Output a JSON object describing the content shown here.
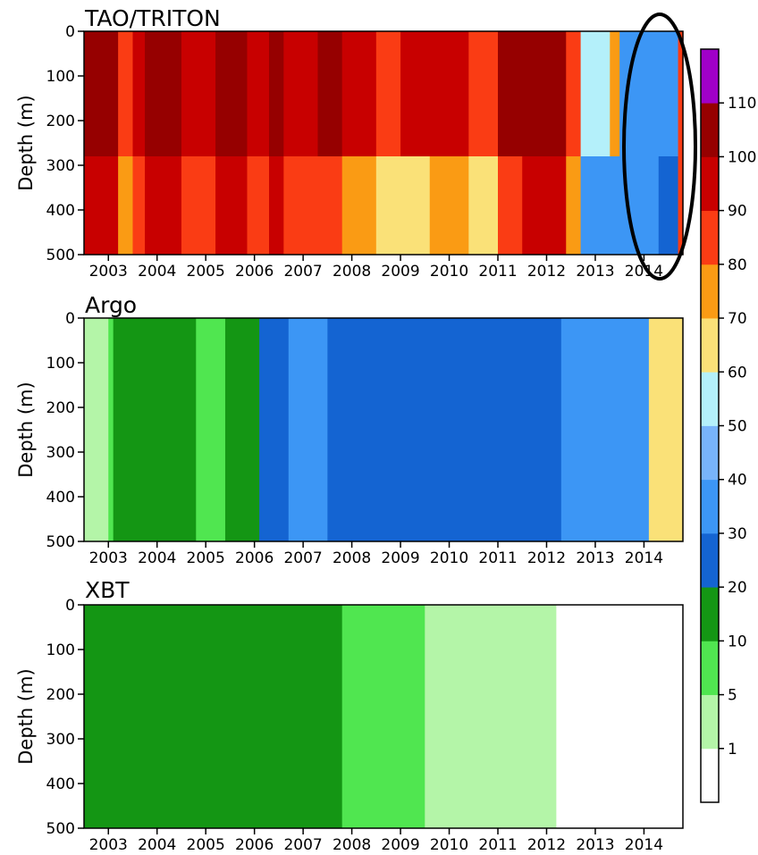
{
  "chart_data": {
    "type": "heatmap",
    "colorbar": {
      "levels": [
        0,
        1,
        5,
        10,
        20,
        30,
        40,
        50,
        60,
        70,
        80,
        90,
        100,
        110,
        120
      ],
      "tick_labels": [
        "1",
        "5",
        "10",
        "20",
        "30",
        "40",
        "50",
        "60",
        "70",
        "80",
        "90",
        "100",
        "110"
      ],
      "colors": [
        "#ffffff",
        "#b4f5a8",
        "#50e650",
        "#149614",
        "#1464d2",
        "#3c96f5",
        "#78b4fa",
        "#b4f0fa",
        "#fae178",
        "#fa9b14",
        "#fa3c14",
        "#c80000",
        "#960000",
        "#a000c8"
      ]
    },
    "xtick_labels": [
      "2003",
      "2004",
      "2005",
      "2006",
      "2007",
      "2008",
      "2009",
      "2010",
      "2011",
      "2012",
      "2013",
      "2014"
    ],
    "ytick_labels": [
      "0",
      "100",
      "200",
      "300",
      "400",
      "500"
    ],
    "yaxis": {
      "label": "Depth (m)",
      "range": [
        0,
        500
      ],
      "inverted": true
    },
    "panels": [
      {
        "title": "TAO/TRITON",
        "upper_break_depth": 280,
        "segments": [
          {
            "start": 2002.5,
            "end": 2003.2,
            "upper": 100,
            "lower": 90
          },
          {
            "start": 2003.2,
            "end": 2003.5,
            "upper": 80,
            "lower": 70
          },
          {
            "start": 2003.5,
            "end": 2003.75,
            "upper": 90,
            "lower": 80
          },
          {
            "start": 2003.75,
            "end": 2004.5,
            "upper": 100,
            "lower": 90
          },
          {
            "start": 2004.5,
            "end": 2005.2,
            "upper": 90,
            "lower": 80
          },
          {
            "start": 2005.2,
            "end": 2005.85,
            "upper": 100,
            "lower": 90
          },
          {
            "start": 2005.85,
            "end": 2006.3,
            "upper": 90,
            "lower": 80
          },
          {
            "start": 2006.3,
            "end": 2006.6,
            "upper": 100,
            "lower": 90
          },
          {
            "start": 2006.6,
            "end": 2007.3,
            "upper": 90,
            "lower": 80
          },
          {
            "start": 2007.3,
            "end": 2007.8,
            "upper": 100,
            "lower": 80
          },
          {
            "start": 2007.8,
            "end": 2008.5,
            "upper": 90,
            "lower": 70
          },
          {
            "start": 2008.5,
            "end": 2009.0,
            "upper": 80,
            "lower": 60
          },
          {
            "start": 2009.0,
            "end": 2009.6,
            "upper": 90,
            "lower": 60
          },
          {
            "start": 2009.6,
            "end": 2010.4,
            "upper": 90,
            "lower": 70
          },
          {
            "start": 2010.4,
            "end": 2011.0,
            "upper": 80,
            "lower": 60
          },
          {
            "start": 2011.0,
            "end": 2011.5,
            "upper": 100,
            "lower": 80
          },
          {
            "start": 2011.5,
            "end": 2012.4,
            "upper": 100,
            "lower": 90
          },
          {
            "start": 2012.4,
            "end": 2012.7,
            "upper": 80,
            "lower": 70
          },
          {
            "start": 2012.7,
            "end": 2013.3,
            "upper": 50,
            "lower": 30
          },
          {
            "start": 2013.3,
            "end": 2013.5,
            "upper": 70,
            "lower": 30
          },
          {
            "start": 2013.5,
            "end": 2014.3,
            "upper": 30,
            "lower": 30
          },
          {
            "start": 2014.3,
            "end": 2014.7,
            "upper": 30,
            "lower": 20
          },
          {
            "start": 2014.7,
            "end": 2014.8,
            "upper": 80,
            "lower": 80
          }
        ]
      },
      {
        "title": "Argo",
        "upper_break_depth": 0,
        "segments": [
          {
            "start": 2002.5,
            "end": 2003.0,
            "upper": 1,
            "lower": 1
          },
          {
            "start": 2003.0,
            "end": 2003.1,
            "upper": 5,
            "lower": 5
          },
          {
            "start": 2003.1,
            "end": 2004.8,
            "upper": 10,
            "lower": 10
          },
          {
            "start": 2004.8,
            "end": 2005.4,
            "upper": 5,
            "lower": 5
          },
          {
            "start": 2005.4,
            "end": 2006.1,
            "upper": 10,
            "lower": 10
          },
          {
            "start": 2006.1,
            "end": 2006.7,
            "upper": 20,
            "lower": 20
          },
          {
            "start": 2006.7,
            "end": 2007.5,
            "upper": 30,
            "lower": 30
          },
          {
            "start": 2007.5,
            "end": 2012.3,
            "upper": 20,
            "lower": 20
          },
          {
            "start": 2012.3,
            "end": 2014.1,
            "upper": 30,
            "lower": 30
          },
          {
            "start": 2014.1,
            "end": 2014.8,
            "upper": 60,
            "lower": 60
          }
        ]
      },
      {
        "title": "XBT",
        "upper_break_depth": 0,
        "segments": [
          {
            "start": 2002.5,
            "end": 2007.8,
            "upper": 10,
            "lower": 10
          },
          {
            "start": 2007.8,
            "end": 2009.5,
            "upper": 5,
            "lower": 5
          },
          {
            "start": 2009.5,
            "end": 2012.2,
            "upper": 1,
            "lower": 1
          },
          {
            "start": 2012.2,
            "end": 2014.8,
            "upper": 0,
            "lower": 0
          }
        ]
      }
    ]
  }
}
